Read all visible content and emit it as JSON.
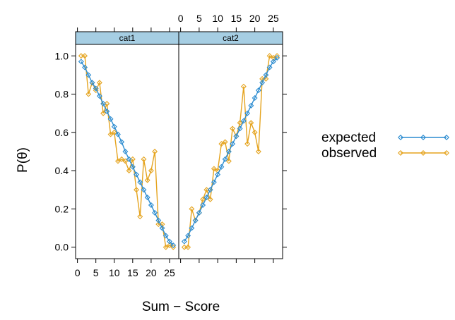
{
  "chart_data": {
    "type": "line",
    "ylabel": "P(θ)",
    "xlabel": "Sum − Score",
    "xlim": [
      -0.5,
      27.5
    ],
    "ylim": [
      -0.06,
      1.06
    ],
    "x_ticks": [
      0,
      5,
      10,
      15,
      20,
      25
    ],
    "y_ticks": [
      0.0,
      0.2,
      0.4,
      0.6,
      0.8,
      1.0
    ],
    "y_tick_labels": [
      "0.0",
      "0.2",
      "0.4",
      "0.6",
      "0.8",
      "1.0"
    ],
    "x_tick_labels": [
      "0",
      "5",
      "10",
      "15",
      "20",
      "25"
    ],
    "legend_position": "right",
    "panels": [
      {
        "name": "cat1",
        "x": [
          1,
          2,
          3,
          4,
          5,
          6,
          7,
          8,
          9,
          10,
          11,
          12,
          13,
          14,
          15,
          16,
          17,
          18,
          19,
          20,
          21,
          22,
          23,
          24,
          25,
          26
        ],
        "series": [
          {
            "name": "expected",
            "color": "#2a8bd0",
            "values": [
              0.97,
              0.94,
              0.9,
              0.86,
              0.83,
              0.79,
              0.75,
              0.71,
              0.67,
              0.63,
              0.59,
              0.55,
              0.5,
              0.46,
              0.42,
              0.38,
              0.34,
              0.3,
              0.26,
              0.22,
              0.18,
              0.14,
              0.1,
              0.06,
              0.03,
              0.01
            ]
          },
          {
            "name": "observed",
            "color": "#e5a41f",
            "values": [
              1.0,
              1.0,
              0.8,
              0.86,
              0.82,
              0.86,
              0.7,
              0.75,
              0.59,
              0.6,
              0.45,
              0.46,
              0.45,
              0.4,
              0.46,
              0.3,
              0.16,
              0.46,
              0.35,
              0.4,
              0.5,
              0.12,
              0.12,
              0.0,
              0.01,
              0.0
            ]
          }
        ]
      },
      {
        "name": "cat2",
        "x": [
          1,
          2,
          3,
          4,
          5,
          6,
          7,
          8,
          9,
          10,
          11,
          12,
          13,
          14,
          15,
          16,
          17,
          18,
          19,
          20,
          21,
          22,
          23,
          24,
          25,
          26
        ],
        "series": [
          {
            "name": "expected",
            "color": "#2a8bd0",
            "values": [
              0.03,
              0.06,
              0.1,
              0.14,
              0.18,
              0.22,
              0.26,
              0.3,
              0.34,
              0.38,
              0.42,
              0.46,
              0.5,
              0.54,
              0.58,
              0.62,
              0.66,
              0.7,
              0.74,
              0.78,
              0.82,
              0.86,
              0.9,
              0.94,
              0.97,
              0.99
            ]
          },
          {
            "name": "observed",
            "color": "#e5a41f",
            "values": [
              0.0,
              0.0,
              0.2,
              0.14,
              0.18,
              0.25,
              0.3,
              0.25,
              0.41,
              0.4,
              0.54,
              0.55,
              0.45,
              0.62,
              0.58,
              0.65,
              0.84,
              0.54,
              0.65,
              0.6,
              0.5,
              0.88,
              0.88,
              1.0,
              0.99,
              1.0
            ]
          }
        ]
      }
    ]
  }
}
